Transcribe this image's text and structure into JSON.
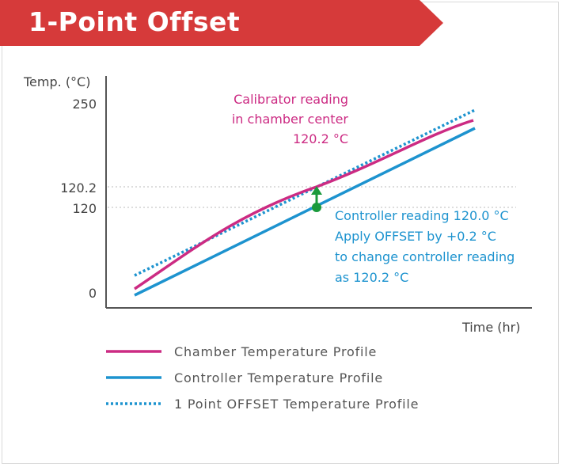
{
  "header": {
    "title": "1-Point Offset"
  },
  "colors": {
    "banner": "#d63a3a",
    "chamber": "#cc2b83",
    "controller": "#1d93cf",
    "offset": "#1d93cf",
    "marker": "#1a9a3c"
  },
  "chart_data": {
    "type": "line",
    "ylabel": "Temp. (°C)",
    "xlabel": "Time (hr)",
    "yticks": [
      "250",
      "120.2",
      "120",
      "0"
    ],
    "ytick_values": [
      250,
      120.2,
      120,
      0
    ],
    "grid": "dotted reference lines at 120.2 and 120",
    "series": [
      {
        "name": "Chamber Temperature Profile",
        "style": "solid",
        "color": "#cc2b83"
      },
      {
        "name": "Controller Temperature Profile",
        "style": "solid",
        "color": "#1d93cf"
      },
      {
        "name": "1 Point OFFSET Temperature Profile",
        "style": "dotted",
        "color": "#1d93cf"
      }
    ],
    "annotations": {
      "calibrator": [
        "Calibrator reading",
        "in chamber center",
        "120.2 °C"
      ],
      "controller": [
        "Controller reading 120.0 °C",
        "Apply OFFSET by +0.2 °C",
        "to change controller reading",
        "as 120.2 °C"
      ]
    },
    "offset_point": {
      "from": 120,
      "to": 120.2
    }
  }
}
